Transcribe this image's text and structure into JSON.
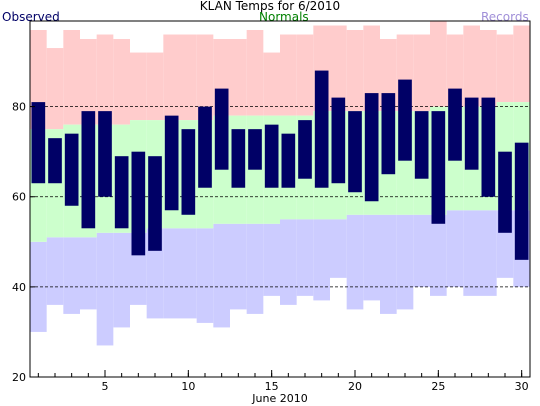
{
  "chart_data": {
    "type": "bar",
    "title": "KLAN Temps for 6/2010",
    "xlabel": "June 2010",
    "ylabel": "",
    "legend": [
      {
        "name": "Observed",
        "color": "#000066"
      },
      {
        "name": "Normals",
        "color": "#008000"
      },
      {
        "name": "Records",
        "color": "#a08fd8"
      }
    ],
    "ylim": [
      20,
      99
    ],
    "xlim": [
      0.5,
      30.5
    ],
    "yticks": [
      20,
      40,
      60,
      80
    ],
    "xticks": [
      5,
      10,
      15,
      20,
      25,
      30
    ],
    "grid_lines": [
      40,
      60,
      80
    ],
    "days": [
      1,
      2,
      3,
      4,
      5,
      6,
      7,
      8,
      9,
      10,
      11,
      12,
      13,
      14,
      15,
      16,
      17,
      18,
      19,
      20,
      21,
      22,
      23,
      24,
      25,
      26,
      27,
      28,
      29,
      30
    ],
    "observed_high": [
      81,
      73,
      74,
      79,
      79,
      69,
      70,
      69,
      78,
      75,
      80,
      84,
      75,
      75,
      76,
      74,
      77,
      88,
      82,
      79,
      83,
      83,
      86,
      79,
      79,
      84,
      82,
      82,
      70,
      72
    ],
    "observed_low": [
      63,
      63,
      58,
      53,
      60,
      53,
      47,
      48,
      57,
      56,
      62,
      66,
      62,
      66,
      62,
      62,
      64,
      62,
      63,
      61,
      59,
      65,
      68,
      64,
      54,
      68,
      66,
      60,
      52,
      46
    ],
    "normal_high": [
      75,
      75,
      76,
      76,
      76,
      76,
      77,
      77,
      77,
      77,
      77,
      78,
      78,
      78,
      78,
      78,
      78,
      79,
      79,
      79,
      79,
      79,
      79,
      79,
      80,
      80,
      80,
      80,
      81,
      81
    ],
    "normal_low": [
      50,
      51,
      51,
      51,
      52,
      52,
      52,
      53,
      53,
      53,
      53,
      54,
      54,
      54,
      54,
      55,
      55,
      55,
      55,
      56,
      56,
      56,
      56,
      56,
      56,
      57,
      57,
      57,
      57,
      57
    ],
    "record_high": [
      97,
      93,
      97,
      95,
      96,
      95,
      92,
      92,
      96,
      96,
      96,
      95,
      95,
      97,
      92,
      96,
      96,
      98,
      98,
      97,
      98,
      95,
      96,
      96,
      99,
      96,
      98,
      97,
      96,
      98
    ],
    "record_low": [
      30,
      36,
      34,
      35,
      27,
      31,
      36,
      33,
      33,
      33,
      32,
      31,
      35,
      34,
      38,
      36,
      38,
      37,
      42,
      35,
      37,
      34,
      35,
      40,
      38,
      40,
      38,
      38,
      42,
      40
    ],
    "colors": {
      "observed": "#000066",
      "normal_band": "#ccffcc",
      "record_high_band": "#ffcccc",
      "record_low_band": "#ccccff",
      "normals_label": "#008000",
      "records_label": "#a08fd8",
      "grid": "#000000"
    }
  }
}
